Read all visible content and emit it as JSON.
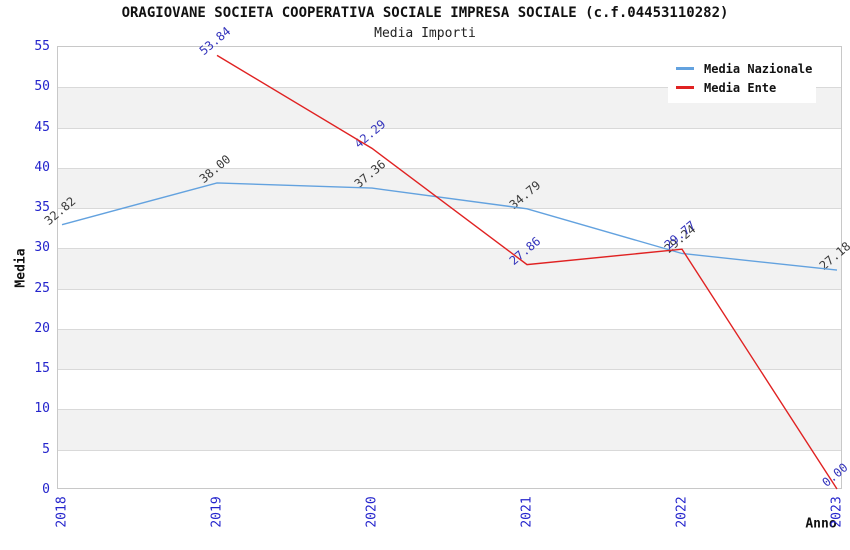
{
  "chart_data": {
    "type": "line",
    "title": "ORAGIOVANE SOCIETA COOPERATIVA SOCIALE IMPRESA SOCIALE (c.f.04453110282)",
    "subtitle": "Media Importi",
    "xlabel": "Anno",
    "ylabel": "Media",
    "categories": [
      "2018",
      "2019",
      "2020",
      "2021",
      "2022",
      "2023"
    ],
    "series": [
      {
        "name": "Media Nazionale",
        "color": "#63A2DF",
        "label_color": "#3B3B3B",
        "values": [
          32.82,
          38.0,
          37.36,
          34.79,
          29.24,
          27.18
        ]
      },
      {
        "name": "Media Ente",
        "color": "#E02222",
        "label_color": "#3333BB",
        "values": [
          null,
          53.84,
          42.29,
          27.86,
          29.77,
          0.0
        ]
      }
    ],
    "ylim": [
      0,
      55
    ],
    "ytick_step": 5,
    "grid": true,
    "legend_position": "top-right",
    "value_label_decimals": 2,
    "colors": {
      "axis_tick": "#2424CC",
      "gridline": "#D9D9D9",
      "band": "#F2F2F2",
      "plot_border": "#C8C8C8"
    }
  }
}
